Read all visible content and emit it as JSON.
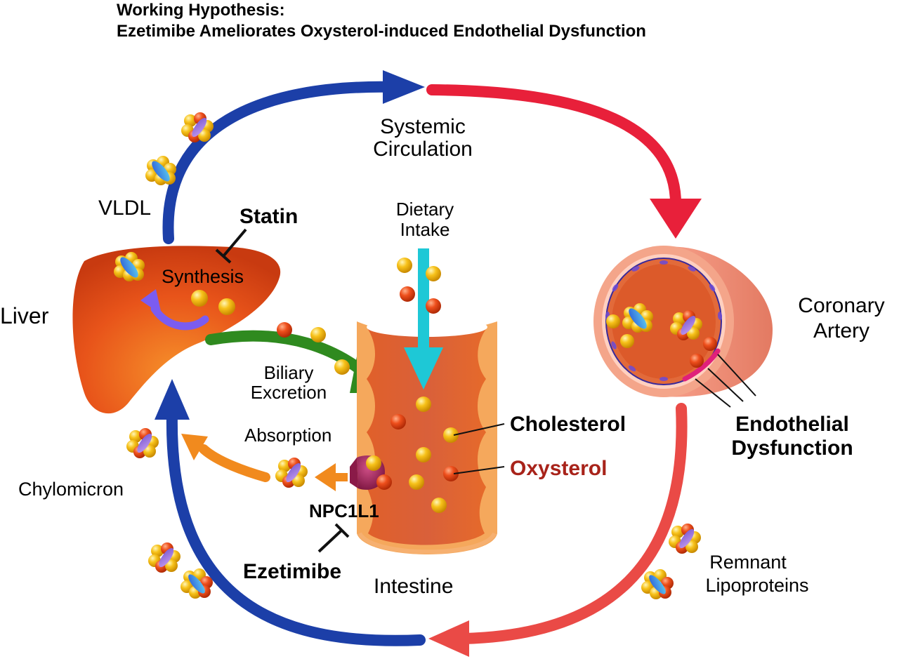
{
  "title": {
    "line1": "Working Hypothesis:",
    "line2": "Ezetimibe Ameliorates Oxysterol-induced Endothelial Dysfunction"
  },
  "labels": {
    "systemic_circulation_1": "Systemic",
    "systemic_circulation_2": "Circulation",
    "vldl": "VLDL",
    "statin": "Statin",
    "synthesis": "Synthesis",
    "liver": "Liver",
    "dietary_intake_1": "Dietary",
    "dietary_intake_2": "Intake",
    "coronary_artery_1": "Coronary",
    "coronary_artery_2": "Artery",
    "biliary_excretion_1": "Biliary",
    "biliary_excretion_2": "Excretion",
    "cholesterol": "Cholesterol",
    "absorption": "Absorption",
    "oxysterol": "Oxysterol",
    "endothelial_dysfunction_1": "Endothelial",
    "endothelial_dysfunction_2": "Dysfunction",
    "chylomicron": "Chylomicron",
    "npc1l1": "NPC1L1",
    "ezetimibe": "Ezetimibe",
    "intestine": "Intestine",
    "remnant_lipoproteins_1": "Remnant",
    "remnant_lipoproteins_2": "Lipoproteins"
  },
  "colors": {
    "blue_arrow": "#1c3fa8",
    "red_arrow": "#e8203a",
    "green_arrow": "#2f8a1f",
    "cyan_arrow": "#1ec8d6",
    "orange_arrow": "#f18a1e",
    "purple_arrow": "#7b5cf0",
    "liver": "#e8541a",
    "cholesterol_ball": "#f7c21a",
    "oxysterol_ball": "#e8461a",
    "oxysterol_text": "#a8231a",
    "npc1l1_protein": "#a3265a"
  }
}
